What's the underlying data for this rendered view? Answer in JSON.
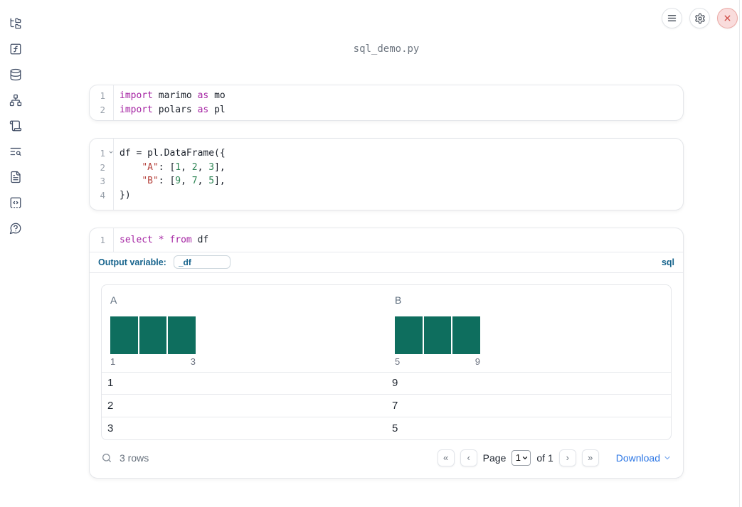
{
  "window": {
    "title": "sql_demo.py",
    "topbar": {
      "menu_icon": "hamburger-menu-icon",
      "settings_icon": "gear-icon",
      "close_icon": "close-x-icon"
    }
  },
  "colors": {
    "accent": "#17648d",
    "link_blue": "#2b76e5",
    "histogram_bar": "#0e6e5e",
    "code_keyword": "#a626a4",
    "code_string": "#b5423c",
    "code_number": "#2e8555",
    "close_button_red": "#cf4a44"
  },
  "sidebar": {
    "items": [
      {
        "icon": "folder-tree-icon"
      },
      {
        "icon": "function-square-icon"
      },
      {
        "icon": "database-icon"
      },
      {
        "icon": "network-graph-icon"
      },
      {
        "icon": "scroll-icon"
      },
      {
        "icon": "text-search-icon"
      },
      {
        "icon": "file-text-icon"
      },
      {
        "icon": "code-square-icon"
      },
      {
        "icon": "help-bubble-icon"
      }
    ]
  },
  "cells": [
    {
      "type": "python",
      "lines": [
        {
          "no": "1",
          "tokens": [
            {
              "c": "kw",
              "t": "import"
            },
            {
              "c": "pl",
              "t": " marimo "
            },
            {
              "c": "kw",
              "t": "as"
            },
            {
              "c": "pl",
              "t": " mo"
            }
          ]
        },
        {
          "no": "2",
          "tokens": [
            {
              "c": "kw",
              "t": "import"
            },
            {
              "c": "pl",
              "t": " polars "
            },
            {
              "c": "kw",
              "t": "as"
            },
            {
              "c": "pl",
              "t": " pl"
            }
          ]
        }
      ]
    },
    {
      "type": "python",
      "lines": [
        {
          "no": "1",
          "foldable": true,
          "tokens": [
            {
              "c": "pl",
              "t": "df = pl.DataFrame({"
            }
          ]
        },
        {
          "no": "2",
          "tokens": [
            {
              "c": "pl",
              "t": "    "
            },
            {
              "c": "str",
              "t": "\"A\""
            },
            {
              "c": "pl",
              "t": ": ["
            },
            {
              "c": "num",
              "t": "1"
            },
            {
              "c": "pl",
              "t": ", "
            },
            {
              "c": "num",
              "t": "2"
            },
            {
              "c": "pl",
              "t": ", "
            },
            {
              "c": "num",
              "t": "3"
            },
            {
              "c": "pl",
              "t": "],"
            }
          ]
        },
        {
          "no": "3",
          "tokens": [
            {
              "c": "pl",
              "t": "    "
            },
            {
              "c": "str",
              "t": "\"B\""
            },
            {
              "c": "pl",
              "t": ": ["
            },
            {
              "c": "num",
              "t": "9"
            },
            {
              "c": "pl",
              "t": ", "
            },
            {
              "c": "num",
              "t": "7"
            },
            {
              "c": "pl",
              "t": ", "
            },
            {
              "c": "num",
              "t": "5"
            },
            {
              "c": "pl",
              "t": "],"
            }
          ]
        },
        {
          "no": "4",
          "tokens": [
            {
              "c": "pl",
              "t": "})"
            }
          ]
        }
      ]
    },
    {
      "type": "sql",
      "lines": [
        {
          "no": "1",
          "tokens": [
            {
              "c": "kw",
              "t": "select"
            },
            {
              "c": "pl",
              "t": " "
            },
            {
              "c": "kw",
              "t": "*"
            },
            {
              "c": "pl",
              "t": " "
            },
            {
              "c": "kw",
              "t": "from"
            },
            {
              "c": "pl",
              "t": " df"
            }
          ]
        }
      ],
      "output_variable_label": "Output variable:",
      "output_variable_value": "_df",
      "language_badge": "sql"
    }
  ],
  "table": {
    "columns": [
      {
        "name": "A",
        "histogram": {
          "bins": [
            1,
            1,
            1
          ],
          "min_label": "1",
          "max_label": "3"
        }
      },
      {
        "name": "B",
        "histogram": {
          "bins": [
            1,
            1,
            1
          ],
          "min_label": "5",
          "max_label": "9"
        }
      }
    ],
    "rows": [
      [
        "1",
        "9"
      ],
      [
        "2",
        "7"
      ],
      [
        "3",
        "5"
      ]
    ],
    "footer": {
      "search_icon": "magnifier-icon",
      "row_count": "3 rows",
      "pagination": {
        "first": "«",
        "prev": "‹",
        "next": "›",
        "last": "»",
        "page_label": "Page",
        "page_value": "1",
        "of_label": "of 1"
      },
      "download_label": "Download"
    }
  }
}
